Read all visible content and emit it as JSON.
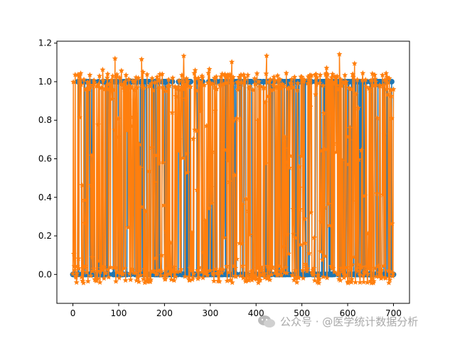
{
  "chart_data": {
    "type": "line",
    "title": "",
    "xlabel": "",
    "ylabel": "",
    "xlim": [
      -35,
      735
    ],
    "ylim": [
      -0.15,
      1.21
    ],
    "x_ticks": [
      0,
      100,
      200,
      300,
      400,
      500,
      600,
      700
    ],
    "y_ticks": [
      0.0,
      0.2,
      0.4,
      0.6,
      0.8,
      1.0,
      1.2
    ],
    "x_tick_labels": [
      "0",
      "100",
      "200",
      "300",
      "400",
      "500",
      "600",
      "700"
    ],
    "y_tick_labels": [
      "0.0",
      "0.2",
      "0.4",
      "0.6",
      "0.8",
      "1.0",
      "1.2"
    ],
    "grid": false,
    "legend": "none",
    "n_points": 701,
    "series": [
      {
        "role": "actual",
        "marker": "circle",
        "color": "#1f77b4",
        "values": "binary 0/1 sequence, 701 points"
      },
      {
        "role": "predicted",
        "marker": "star",
        "color": "#ff7f0e",
        "values": "noisy 0/1 predictions, range approx. -0.08 to 1.15"
      }
    ]
  },
  "watermark": {
    "text": "公众号 · @医学统计数据分析",
    "icon": "wechat-icon"
  }
}
